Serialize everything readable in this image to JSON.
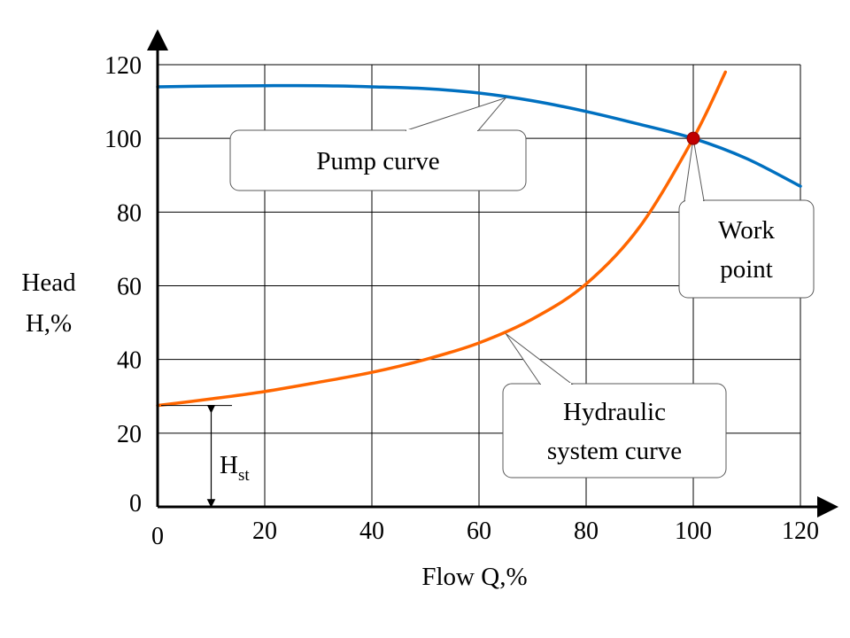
{
  "chart_data": {
    "type": "line",
    "xlabel": "Flow  Q,%",
    "ylabel_lines": [
      "Head",
      "H,%"
    ],
    "xlim": [
      0,
      120
    ],
    "ylim": [
      0,
      120
    ],
    "x_ticks": [
      "0",
      "20",
      "40",
      "60",
      "80",
      "100",
      "120"
    ],
    "y_ticks": [
      "0",
      "20",
      "40",
      "60",
      "80",
      "100",
      "120"
    ],
    "grid": true,
    "series": [
      {
        "name": "Pump curve",
        "color": "#0070C0",
        "x": [
          0,
          10,
          20,
          30,
          40,
          50,
          60,
          70,
          80,
          90,
          100,
          110,
          120
        ],
        "y": [
          114,
          114.2,
          114.3,
          114.3,
          114,
          113.5,
          112.3,
          110.2,
          107.3,
          103.8,
          100,
          94.5,
          87
        ]
      },
      {
        "name": "Hydraulic system curve",
        "color": "#FF6600",
        "x": [
          0,
          10,
          20,
          30,
          40,
          50,
          60,
          70,
          80,
          90,
          100,
          106
        ],
        "y": [
          27.5,
          29.3,
          31.3,
          33.8,
          36.5,
          40,
          44.5,
          51,
          60.5,
          76,
          100,
          118
        ]
      }
    ],
    "work_point": {
      "x": 100,
      "y": 100,
      "color": "#C00000"
    },
    "static_head": {
      "label_main": "H",
      "label_sub": "st",
      "from": 0,
      "to": 27.5
    },
    "annotations": [
      {
        "lines": [
          "Pump curve"
        ],
        "target": [
          65,
          111
        ]
      },
      {
        "lines": [
          "Work",
          "point"
        ],
        "target": [
          100,
          100
        ]
      },
      {
        "lines": [
          "Hydraulic",
          "system  curve"
        ],
        "target": [
          65,
          47
        ]
      }
    ]
  }
}
